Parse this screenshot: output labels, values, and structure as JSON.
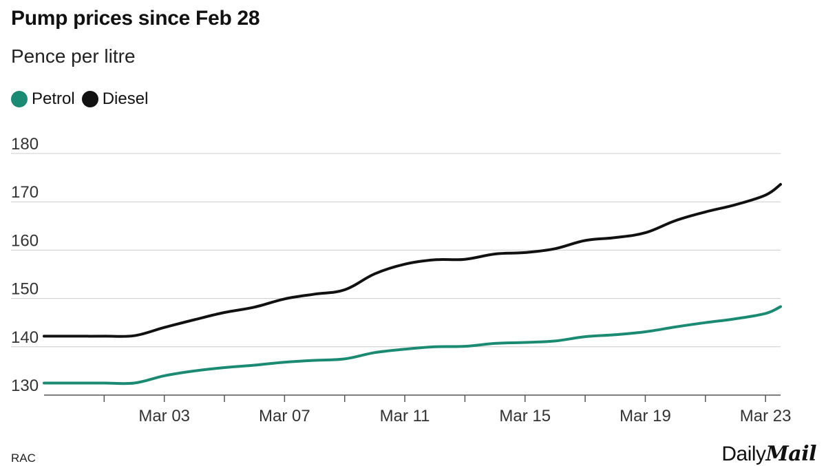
{
  "title": "Pump prices since Feb 28",
  "subtitle": "Pence per litre",
  "source": "RAC",
  "logo": {
    "part1": "Daily",
    "part2": "Mail"
  },
  "colors": {
    "petrol": "#1a8a72",
    "diesel": "#111111",
    "grid": "#cccccc",
    "axis": "#555555"
  },
  "chart_data": {
    "type": "line",
    "title": "Pump prices since Feb 28",
    "ylabel": "Pence per litre",
    "xlabel": "",
    "ylim": [
      130,
      180
    ],
    "yticks": [
      130,
      140,
      150,
      160,
      170,
      180
    ],
    "x_start_day": -1,
    "x_end_day": 23.5,
    "x_ticks": [
      {
        "day": 1,
        "label": ""
      },
      {
        "day": 3,
        "label": "Mar 03"
      },
      {
        "day": 5,
        "label": ""
      },
      {
        "day": 7,
        "label": "Mar 07"
      },
      {
        "day": 9,
        "label": ""
      },
      {
        "day": 11,
        "label": "Mar 11"
      },
      {
        "day": 13,
        "label": ""
      },
      {
        "day": 15,
        "label": "Mar 15"
      },
      {
        "day": 17,
        "label": ""
      },
      {
        "day": 19,
        "label": "Mar 19"
      },
      {
        "day": 21,
        "label": ""
      },
      {
        "day": 23,
        "label": "Mar 23"
      }
    ],
    "series": [
      {
        "name": "Petrol",
        "days": [
          -1,
          0,
          1,
          2,
          3,
          4,
          5,
          6,
          7,
          8,
          9,
          10,
          11,
          12,
          13,
          14,
          15,
          16,
          17,
          18,
          19,
          20,
          21,
          22,
          23,
          23.5
        ],
        "values": [
          132.5,
          132.5,
          132.5,
          132.5,
          134,
          135,
          135.7,
          136.2,
          136.8,
          137.2,
          137.5,
          138.8,
          139.5,
          140,
          140.1,
          140.7,
          140.9,
          141.2,
          142.1,
          142.5,
          143.1,
          144.1,
          145.0,
          145.8,
          146.9,
          148.3
        ]
      },
      {
        "name": "Diesel",
        "days": [
          -1,
          0,
          1,
          2,
          3,
          4,
          5,
          6,
          7,
          8,
          9,
          10,
          11,
          12,
          13,
          14,
          15,
          16,
          17,
          18,
          19,
          20,
          21,
          22,
          23,
          23.5
        ],
        "values": [
          142.2,
          142.2,
          142.2,
          142.3,
          144,
          145.6,
          147.1,
          148.2,
          149.9,
          150.9,
          151.8,
          155.1,
          157.1,
          158,
          158.1,
          159.2,
          159.5,
          160.3,
          162,
          162.6,
          163.6,
          166.1,
          167.9,
          169.4,
          171.4,
          173.6
        ]
      }
    ]
  }
}
